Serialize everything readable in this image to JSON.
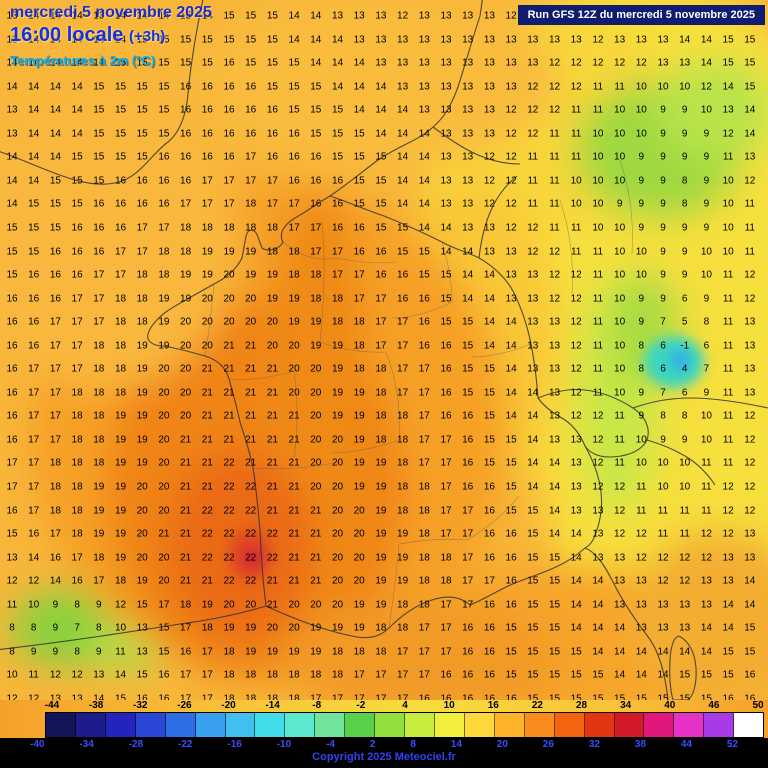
{
  "header": {
    "date_line": "mercredi 5 novembre 2025",
    "time_line": "16:00 locale",
    "time_offset": "(+3h)",
    "variable_line": "Températures à 2m (°C)",
    "run_info": "Run GFS 12Z du mercredi 5 novembre 2025"
  },
  "footer": {
    "copyright": "Copyright 2025 Meteociel.fr"
  },
  "colors": {
    "run_box_navy": "#101c70",
    "header_blue": "#1f2ccc",
    "header_cyan": "#00b4f0",
    "copyright_blue": "#3340f0",
    "map_orange": "#f08414",
    "map_amber": "#f8b63a",
    "map_yellow": "#f7e03c",
    "map_green": "#9fd83f",
    "map_cyan": "#3ad6c0",
    "map_red": "#d42430"
  },
  "colorbar": {
    "top_labels": [
      "-44",
      "-38",
      "-32",
      "-26",
      "-20",
      "-14",
      "-8",
      "-2",
      "4",
      "10",
      "16",
      "22",
      "28",
      "34",
      "40",
      "46",
      "50"
    ],
    "bottom_labels": [
      "-40",
      "-34",
      "-28",
      "-22",
      "-16",
      "-10",
      "-4",
      "2",
      "8",
      "14",
      "20",
      "26",
      "32",
      "38",
      "44",
      "52"
    ],
    "segment_colors": [
      "#14145a",
      "#1c1c8c",
      "#2424bc",
      "#2a46d4",
      "#2e6ee4",
      "#38a0ee",
      "#40c0f0",
      "#42dce8",
      "#5ce8cc",
      "#6fe49a",
      "#5ad04a",
      "#92df3e",
      "#c8ec3e",
      "#f2ee3c",
      "#fed83a",
      "#fdb32c",
      "#f98c1c",
      "#f26312",
      "#e23514",
      "#d41a28",
      "#e0187c",
      "#e533c8",
      "#a93ae8",
      "#ffffff"
    ]
  },
  "chart_data": {
    "type": "heatmap",
    "title": "Températures à 2m (°C)",
    "unit": "°C",
    "source": "Run GFS 12Z du mercredi 5 novembre 2025",
    "grid_cols": 35,
    "grid_rows_count": 30,
    "rows": [
      "13 14 14 14 13 14 14 14 15 14 15 15 15 14 14 13 13 13 12 13 13 13 13 12 13 13 13 13 13 13 13 14 14 14 14",
      "13 14 14 14 14 14 15 15 15 15 15 15 15 14 14 14 13 13 13 13 13 13 13 13 13 13 13 12 13 13 13 14 14 15 15",
      "14 14 14 14 14 15 15 15 15 15 16 15 15 15 14 14 14 13 13 13 13 13 13 13 13 12 12 12 12 12 13 13 14 15 15",
      "14 14 14 14 15 15 15 15 16 16 16 16 15 15 15 14 14 14 13 13 13 13 13 13 12 12 12 11 11 10 10 10 12 14 15",
      "13 14 14 14 15 15 15 15 16 16 16 16 16 15 15 15 14 14 14 13 13 13 13 12 12 12 11 11 10 10 9 9 10 13 14",
      "13 14 14 14 15 15 15 15 16 16 16 16 16 16 15 15 15 14 14 14 13 13 13 12 12 11 11 10 10 10 9 9 9 12 14",
      "14 14 14 15 15 15 15 16 16 16 16 17 16 16 16 15 15 15 14 14 13 13 12 12 11 11 11 10 10 9 9 9 9 11 13",
      "14 14 15 15 15 16 16 16 16 17 17 17 17 16 16 16 15 15 14 14 13 13 12 12 11 11 10 10 10 9 9 8 9 10 12",
      "14 15 15 15 16 16 16 16 17 17 17 18 17 17 16 16 15 15 14 14 13 13 12 12 11 11 10 10 9 9 9 8 9 10 11",
      "15 15 15 16 16 16 17 17 18 18 18 18 18 17 17 16 16 15 15 14 14 13 13 12 12 11 11 10 10 9 9 9 9 10 11",
      "15 15 16 16 16 17 17 18 18 19 19 19 18 18 17 17 16 16 15 15 14 14 13 13 12 12 11 11 10 10 9 9 10 10 11",
      "15 16 16 16 17 17 18 18 19 19 20 19 19 18 18 17 17 16 16 15 15 14 14 13 13 12 12 11 10 10 9 9 10 11 12",
      "16 16 16 17 17 18 18 19 19 20 20 20 19 19 18 18 17 17 16 16 15 14 14 13 13 12 12 11 10 9 9 6 9 11 12",
      "16 16 17 17 17 18 18 19 20 20 20 20 20 19 19 18 18 17 17 16 15 15 14 14 13 13 12 11 10 9 7 5 8 11 13",
      "16 16 17 17 18 18 19 19 20 20 21 21 20 20 19 19 18 17 17 16 16 15 14 14 13 13 12 11 10 8 6 -1 6 11 13",
      "16 17 17 17 18 18 19 20 20 21 21 21 21 20 20 19 18 18 17 17 16 15 15 14 13 13 12 11 10 8 6 4 7 11 13",
      "16 17 17 18 18 18 19 20 20 21 21 21 21 20 20 19 19 18 17 17 16 15 15 14 14 13 12 11 10 9 7 6 9 11 13",
      "16 17 17 18 18 19 19 20 20 21 21 21 21 21 20 19 19 18 18 17 16 16 15 14 14 13 12 12 11 9 8 8 10 11 12",
      "16 17 17 18 18 19 19 20 21 21 21 21 21 21 20 20 19 18 18 17 17 16 15 15 14 13 13 12 11 10 9 9 10 11 12",
      "17 17 18 18 18 19 19 20 21 21 22 21 21 21 20 20 19 19 18 17 17 16 15 15 14 14 13 12 11 10 10 10 11 11 12",
      "17 17 18 18 19 19 20 20 21 21 22 22 21 21 20 20 19 19 18 18 17 16 16 15 14 14 13 12 12 11 10 10 11 12 12",
      "16 17 18 18 19 19 20 20 21 22 22 22 21 21 21 20 20 19 18 18 17 17 16 15 15 14 13 13 12 11 11 11 11 12 12",
      "15 16 17 18 19 19 20 21 21 22 22 22 22 21 21 20 20 19 19 18 17 17 16 16 15 14 14 13 12 12 11 11 12 12 13",
      "13 14 16 17 18 19 20 20 21 22 22 22 22 21 21 20 20 19 19 18 18 17 16 16 15 15 14 13 13 12 12 12 12 13 13",
      "12 12 14 16 17 18 19 20 21 21 22 22 21 21 21 20 20 19 19 18 18 17 17 16 15 15 14 14 13 13 12 12 13 13 14",
      "11 10 9 8 9 12 15 17 18 19 20 20 21 20 20 20 19 19 18 18 17 17 16 16 15 15 14 14 13 13 13 13 13 14 14",
      "8 8 9 7 8 10 13 15 17 18 19 19 20 20 19 19 19 18 18 17 17 16 16 15 15 15 14 14 14 13 13 13 14 14 15",
      "8 9 9 8 9 11 13 15 16 17 18 19 19 19 19 18 18 18 17 17 17 16 16 15 15 15 15 14 14 14 14 14 14 15 15",
      "10 11 12 12 13 14 15 16 17 17 18 18 18 18 18 18 17 17 17 17 16 16 16 15 15 15 15 15 14 14 14 15 15 15 16",
      "12 12 13 13 14 15 16 16 17 17 18 18 18 18 17 17 17 17 17 16 16 16 16 16 15 15 15 15 15 15 15 15 15 16 16"
    ]
  }
}
